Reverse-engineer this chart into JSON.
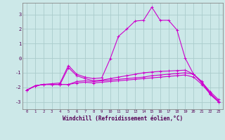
{
  "title": "",
  "xlabel": "Windchill (Refroidissement éolien,°C)",
  "ylabel": "",
  "bg_color": "#cce8e8",
  "grid_color": "#aacccc",
  "line_color": "#cc00cc",
  "xlim": [
    -0.5,
    23.5
  ],
  "ylim": [
    -3.5,
    3.8
  ],
  "yticks": [
    -3,
    -2,
    -1,
    0,
    1,
    2,
    3
  ],
  "xticks": [
    0,
    1,
    2,
    3,
    4,
    5,
    6,
    7,
    8,
    9,
    10,
    11,
    12,
    13,
    14,
    15,
    16,
    17,
    18,
    19,
    20,
    21,
    22,
    23
  ],
  "series": [
    [
      -2.2,
      -1.9,
      -1.8,
      -1.8,
      -1.8,
      -1.8,
      -1.6,
      -1.55,
      -1.6,
      -1.55,
      -1.5,
      -1.45,
      -1.4,
      -1.35,
      -1.3,
      -1.2,
      -1.15,
      -1.1,
      -1.05,
      -1.0,
      -1.1,
      -1.65,
      -2.3,
      -2.85
    ],
    [
      -2.2,
      -1.9,
      -1.8,
      -1.8,
      -1.8,
      -1.8,
      -1.7,
      -1.65,
      -1.7,
      -1.65,
      -1.6,
      -1.55,
      -1.5,
      -1.45,
      -1.4,
      -1.35,
      -1.3,
      -1.25,
      -1.2,
      -1.15,
      -1.3,
      -1.8,
      -2.45,
      -3.0
    ],
    [
      -2.2,
      -1.9,
      -1.8,
      -1.8,
      -1.8,
      -0.65,
      -1.2,
      -1.4,
      -1.55,
      -1.5,
      -1.4,
      -1.3,
      -1.2,
      -1.1,
      -1.0,
      -0.95,
      -0.9,
      -0.88,
      -0.85,
      -0.82,
      -1.1,
      -1.7,
      -2.4,
      -2.95
    ],
    [
      -2.2,
      -1.9,
      -1.8,
      -1.75,
      -1.7,
      -0.5,
      -1.1,
      -1.3,
      -1.4,
      -1.35,
      -0.05,
      1.5,
      2.0,
      2.55,
      2.6,
      3.5,
      2.6,
      2.6,
      1.95,
      0.0,
      -1.1,
      -1.6,
      -2.5,
      -3.0
    ]
  ]
}
